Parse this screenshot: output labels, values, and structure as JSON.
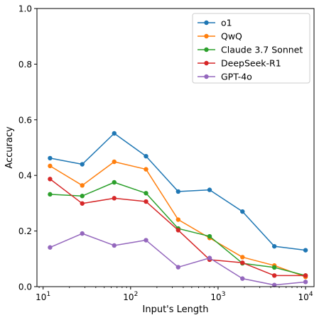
{
  "chart_data": {
    "type": "line",
    "xlabel": "Input's Length",
    "ylabel": "Accuracy",
    "xscale": "log",
    "xlim": [
      8.5,
      12500
    ],
    "ylim": [
      0,
      1.0
    ],
    "grid": false,
    "legend_position": "top-right",
    "x": [
      12,
      28,
      65,
      150,
      350,
      800,
      1900,
      4400,
      10000
    ],
    "xticks": [
      {
        "value": 10,
        "base": "10",
        "exp": "1"
      },
      {
        "value": 100,
        "base": "10",
        "exp": "2"
      },
      {
        "value": 1000,
        "base": "10",
        "exp": "3"
      },
      {
        "value": 10000,
        "base": "10",
        "exp": "4"
      }
    ],
    "yticks": [
      {
        "value": 0.0,
        "label": "0.0"
      },
      {
        "value": 0.2,
        "label": "0.2"
      },
      {
        "value": 0.4,
        "label": "0.4"
      },
      {
        "value": 0.6,
        "label": "0.6"
      },
      {
        "value": 0.8,
        "label": "0.8"
      },
      {
        "value": 1.0,
        "label": "1.0"
      }
    ],
    "series": [
      {
        "name": "o1",
        "color": "#1f77b4",
        "values": [
          0.462,
          0.44,
          0.551,
          0.469,
          0.342,
          0.348,
          0.27,
          0.145,
          0.131
        ]
      },
      {
        "name": "QwQ",
        "color": "#ff7f0e",
        "values": [
          0.434,
          0.364,
          0.449,
          0.422,
          0.241,
          0.175,
          0.106,
          0.076,
          0.035
        ]
      },
      {
        "name": "Claude 3.7 Sonnet",
        "color": "#2ca02c",
        "values": [
          0.332,
          0.326,
          0.375,
          0.336,
          0.209,
          0.181,
          0.084,
          0.069,
          0.04
        ]
      },
      {
        "name": "DeepSeek-R1",
        "color": "#d62728",
        "values": [
          0.387,
          0.299,
          0.318,
          0.306,
          0.203,
          0.097,
          0.086,
          0.04,
          0.04
        ]
      },
      {
        "name": "GPT-4o",
        "color": "#9467bd",
        "values": [
          0.141,
          0.191,
          0.148,
          0.167,
          0.07,
          0.103,
          0.029,
          0.006,
          0.017
        ]
      }
    ]
  }
}
